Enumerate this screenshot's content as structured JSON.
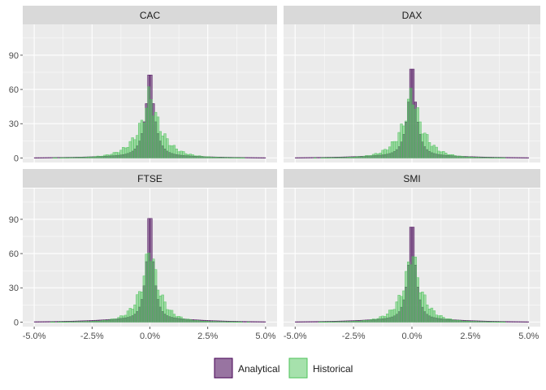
{
  "chart_data": {
    "type": "bar",
    "facet_layout": "2x2",
    "panels": [
      "CAC",
      "DAX",
      "FTSE",
      "SMI"
    ],
    "x_ticks": [
      "-5.0%",
      "-2.5%",
      "0.0%",
      "2.5%",
      "5.0%"
    ],
    "xlim": [
      -5.0,
      5.0
    ],
    "y_ticks": [
      "0",
      "30",
      "60",
      "90"
    ],
    "ylim": [
      -4,
      117
    ],
    "grid": true,
    "legend_position": "bottom",
    "series": [
      {
        "name": "Analytical",
        "fill": "#440154",
        "fill_opacity": 0.55,
        "stroke": "#440154"
      },
      {
        "name": "Historical",
        "fill": "#4DC35A",
        "fill_opacity": 0.5,
        "stroke": "#4DC35A"
      }
    ],
    "distribution_params": {
      "bin_width_pct": 0.1,
      "CAC": {
        "analytical_peak": 85,
        "historical_peak": 55,
        "analytical_scale_pct": 0.22,
        "historical_scale_pct": 0.55
      },
      "DAX": {
        "analytical_peak": 93,
        "historical_peak": 58,
        "analytical_scale_pct": 0.2,
        "historical_scale_pct": 0.5
      },
      "FTSE": {
        "analytical_peak": 113,
        "historical_peak": 68,
        "analytical_scale_pct": 0.17,
        "historical_scale_pct": 0.42
      },
      "SMI": {
        "analytical_peak": 102,
        "historical_peak": 64,
        "analytical_scale_pct": 0.18,
        "historical_scale_pct": 0.44
      }
    }
  }
}
